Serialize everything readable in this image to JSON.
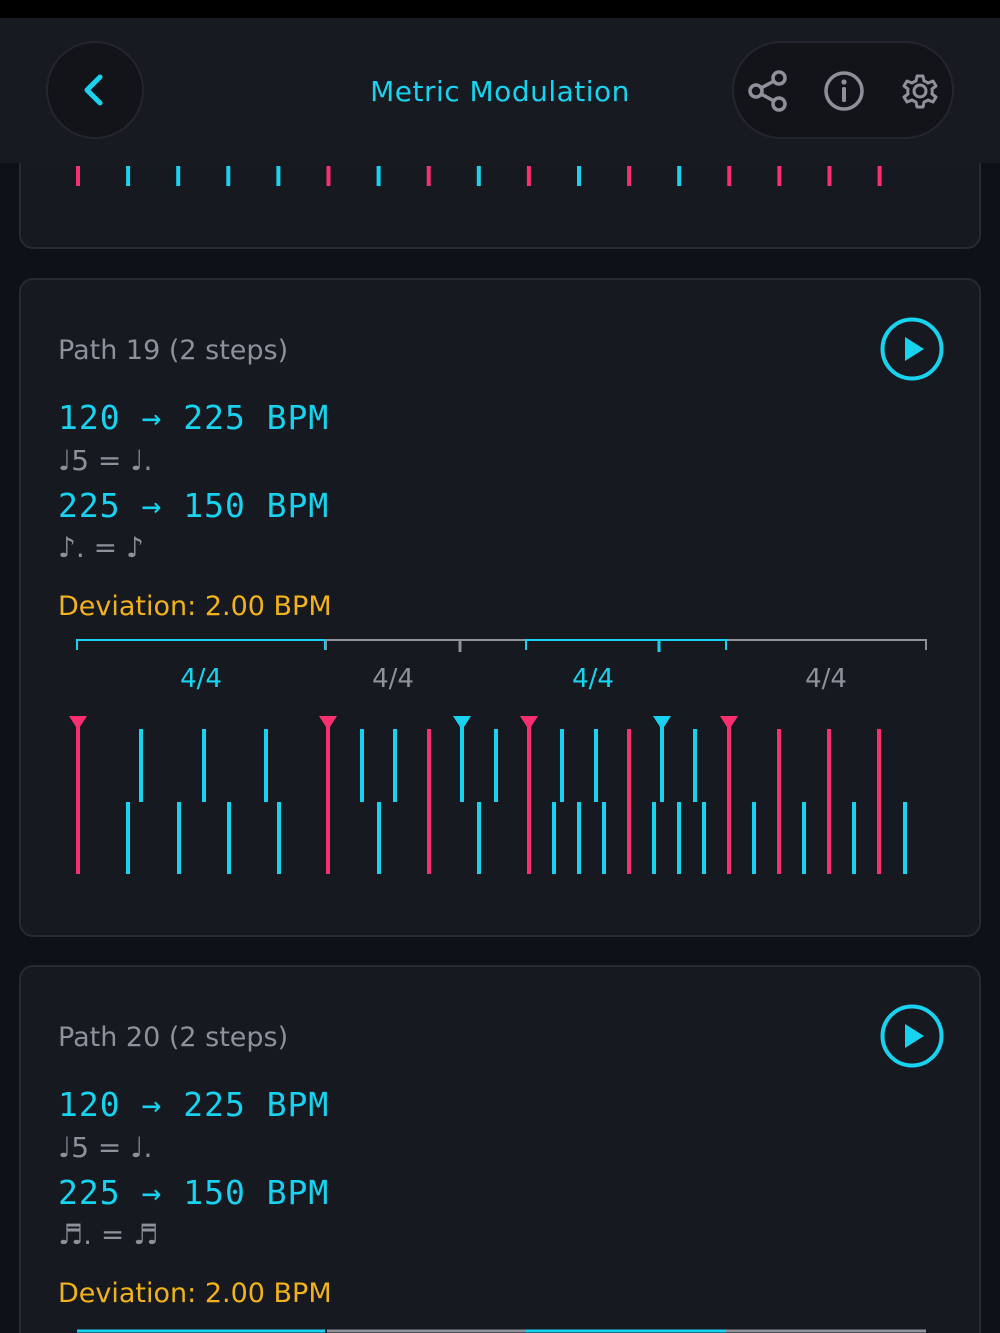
{
  "header": {
    "title": "Metric Modulation",
    "back_icon": "chevron-left-icon",
    "actions": [
      "share-icon",
      "info-icon",
      "gear-icon"
    ]
  },
  "colors": {
    "accent": "#18d3f0",
    "beat": "#fa2f71",
    "muted": "#8e919a",
    "deviation": "#f2b21c",
    "background": "#0e1117",
    "card": "#161920"
  },
  "top_partial_ticks": [
    "pink",
    "cyan",
    "cyan",
    "cyan",
    "cyan",
    "pink",
    "cyan",
    "pink",
    "cyan",
    "pink",
    "cyan",
    "pink",
    "cyan",
    "pink",
    "pink",
    "pink",
    "pink"
  ],
  "paths": [
    {
      "title": "Path 19 (2 steps)",
      "steps": [
        {
          "bpm": "120 → 225 BPM",
          "notes": "♩5 = ♩."
        },
        {
          "bpm": "225 → 150 BPM",
          "notes": "♪. = ♪"
        }
      ],
      "deviation": "Deviation: 2.00 BPM",
      "measures": [
        "4/4",
        "4/4",
        "4/4",
        "4/4"
      ]
    },
    {
      "title": "Path 20 (2 steps)",
      "steps": [
        {
          "bpm": "120 → 225 BPM",
          "notes": "♩5 = ♩."
        },
        {
          "bpm": "225 → 150 BPM",
          "notes": "♬. = ♬"
        }
      ],
      "deviation": "Deviation: 2.00 BPM"
    }
  ]
}
